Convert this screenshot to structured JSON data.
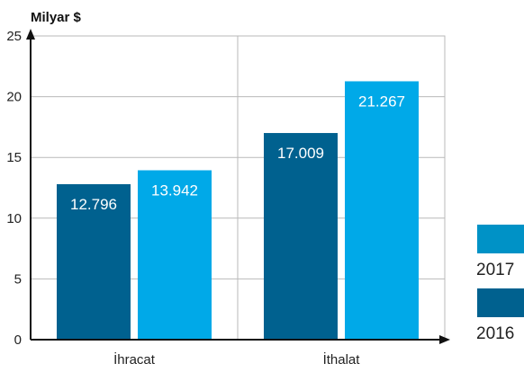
{
  "chart_data": {
    "type": "bar",
    "ylabel": "Milyar $",
    "xlabel": "",
    "categories": [
      "İhracat",
      "İthalat"
    ],
    "series": [
      {
        "name": "2016",
        "values": [
          12.796,
          17.009
        ],
        "labels": [
          "12.796",
          "17.009"
        ],
        "color": "#00618f"
      },
      {
        "name": "2017",
        "values": [
          13.942,
          21.267
        ],
        "labels": [
          "13.942",
          "21.267"
        ],
        "color": "#00a9e8"
      }
    ],
    "legend_colors": {
      "2017": "#0092c6",
      "2016": "#00618f"
    },
    "ylim": [
      0,
      25
    ],
    "yticks": [
      "0",
      "5",
      "10",
      "15",
      "20",
      "25"
    ],
    "grid": true,
    "legend_position": "bottom-right",
    "legend_order": [
      "2017",
      "2016"
    ]
  }
}
